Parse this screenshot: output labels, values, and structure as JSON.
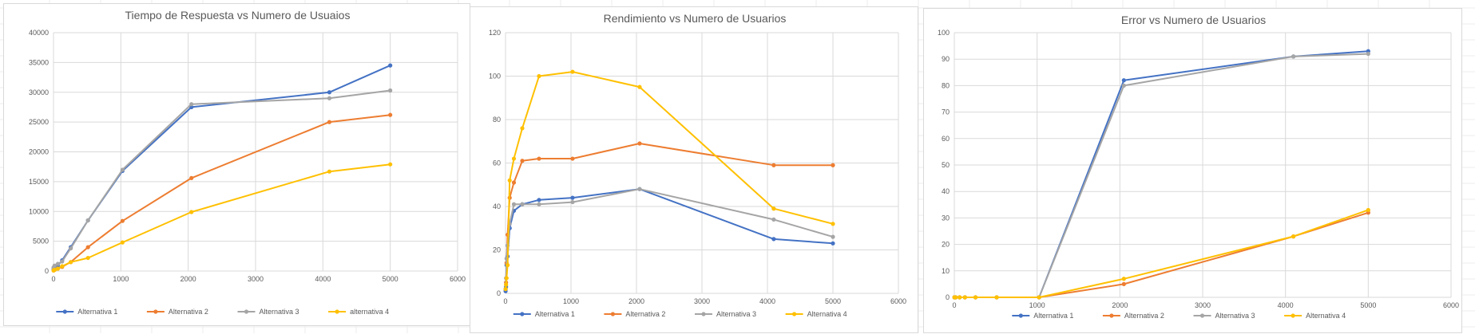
{
  "colors": {
    "alt1": "#4472c4",
    "alt2": "#ed7d31",
    "alt3": "#a5a5a5",
    "alt4": "#ffc000",
    "gridline": "#d9d9d9",
    "text": "#595959"
  },
  "chart_data": [
    {
      "type": "line",
      "title": "Tiempo de Respuesta vs Numero de Usuaios",
      "xlabel": "",
      "ylabel": "",
      "xlim": [
        0,
        6000
      ],
      "ylim": [
        0,
        40000
      ],
      "xticks": [
        0,
        1000,
        2000,
        3000,
        4000,
        5000,
        6000
      ],
      "yticks": [
        0,
        5000,
        10000,
        15000,
        20000,
        25000,
        30000,
        35000,
        40000
      ],
      "grid": true,
      "legend": "bottom",
      "series": [
        {
          "name": "Alternativa 1",
          "x": [
            1,
            16,
            64,
            128,
            256,
            512,
            1024,
            2048,
            4096,
            5000
          ],
          "y": [
            300,
            500,
            900,
            1800,
            4000,
            8500,
            16800,
            27500,
            30000,
            34500
          ]
        },
        {
          "name": "Alternativa 2",
          "x": [
            1,
            16,
            64,
            128,
            256,
            512,
            1024,
            2048,
            4096,
            5000
          ],
          "y": [
            100,
            200,
            400,
            700,
            1500,
            4000,
            8400,
            15600,
            25000,
            26200
          ]
        },
        {
          "name": "Alternativa 3",
          "x": [
            1,
            16,
            64,
            128,
            256,
            512,
            1024,
            2048,
            4096,
            5000
          ],
          "y": [
            600,
            900,
            1200,
            1600,
            3800,
            8500,
            17000,
            28000,
            29000,
            30300
          ]
        },
        {
          "name": "alternativa 4",
          "x": [
            1,
            16,
            64,
            128,
            256,
            512,
            1024,
            2048,
            4096,
            5000
          ],
          "y": [
            100,
            200,
            400,
            800,
            1500,
            2200,
            4800,
            9900,
            16700,
            17900
          ]
        }
      ]
    },
    {
      "type": "line",
      "title": "Rendimiento vs Numero de Usuarios",
      "xlabel": "",
      "ylabel": "",
      "xlim": [
        0,
        6000
      ],
      "ylim": [
        0,
        120
      ],
      "xticks": [
        0,
        1000,
        2000,
        3000,
        4000,
        5000,
        6000
      ],
      "yticks": [
        0,
        20,
        40,
        60,
        80,
        100,
        120
      ],
      "grid": true,
      "legend": "bottom",
      "series": [
        {
          "name": "Alternativa 1",
          "x": [
            1,
            8,
            16,
            32,
            64,
            128,
            256,
            512,
            1024,
            2048,
            4096,
            5000
          ],
          "y": [
            1,
            3,
            13,
            17,
            30,
            38,
            41,
            43,
            44,
            48,
            25,
            23
          ]
        },
        {
          "name": "Alternativa 2",
          "x": [
            1,
            8,
            16,
            32,
            64,
            128,
            256,
            512,
            1024,
            2048,
            4096,
            5000
          ],
          "y": [
            2,
            5,
            14,
            27,
            44,
            51,
            61,
            62,
            62,
            69,
            59,
            59
          ]
        },
        {
          "name": "Alternativa 3",
          "x": [
            1,
            8,
            16,
            32,
            64,
            128,
            256,
            512,
            1024,
            2048,
            4096,
            5000
          ],
          "y": [
            2,
            7,
            16,
            22,
            32,
            41,
            41,
            41,
            42,
            48,
            34,
            26
          ]
        },
        {
          "name": "Alternativa 4",
          "x": [
            1,
            8,
            16,
            32,
            64,
            128,
            256,
            512,
            1024,
            2048,
            4096,
            5000
          ],
          "y": [
            2,
            4,
            7,
            13,
            52,
            62,
            76,
            100,
            102,
            95,
            39,
            32
          ]
        }
      ]
    },
    {
      "type": "line",
      "title": "Error vs Numero de Usuarios",
      "xlabel": "",
      "ylabel": "",
      "xlim": [
        0,
        6000
      ],
      "ylim": [
        0,
        100
      ],
      "xticks": [
        0,
        1000,
        2000,
        3000,
        4000,
        5000,
        6000
      ],
      "yticks": [
        0,
        10,
        20,
        30,
        40,
        50,
        60,
        70,
        80,
        90,
        100
      ],
      "grid": true,
      "legend": "bottom",
      "series": [
        {
          "name": "Alternativa 1",
          "x": [
            1,
            16,
            64,
            128,
            256,
            512,
            1024,
            2048,
            4096,
            5000
          ],
          "y": [
            0,
            0,
            0,
            0,
            0,
            0,
            0,
            82,
            91,
            93
          ]
        },
        {
          "name": "Alternativa 2",
          "x": [
            1,
            16,
            64,
            128,
            256,
            512,
            1024,
            2048,
            4096,
            5000
          ],
          "y": [
            0,
            0,
            0,
            0,
            0,
            0,
            0,
            5,
            23,
            32
          ]
        },
        {
          "name": "Alternativa 3",
          "x": [
            1,
            16,
            64,
            128,
            256,
            512,
            1024,
            2048,
            4096,
            5000
          ],
          "y": [
            0,
            0,
            0,
            0,
            0,
            0,
            0,
            80,
            91,
            92
          ]
        },
        {
          "name": "Alternativa 4",
          "x": [
            1,
            16,
            64,
            128,
            256,
            512,
            1024,
            2048,
            4096,
            5000
          ],
          "y": [
            0,
            0,
            0,
            0,
            0,
            0,
            0,
            7,
            23,
            33
          ]
        }
      ]
    }
  ]
}
